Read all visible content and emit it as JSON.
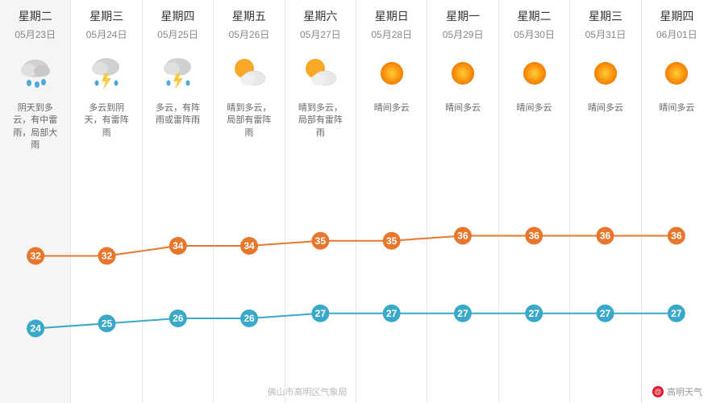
{
  "meta": {
    "source_text": "佛山市高明区气象局",
    "handle_prefix": "@",
    "handle": "高明天气"
  },
  "chart": {
    "type": "line",
    "high_color": "#e8772e",
    "low_color": "#3aa9c9",
    "marker_radius": 11,
    "line_width": 2,
    "grid_color": "#e8e8e8",
    "background_color": "#ffffff",
    "selected_bg": "#f5f5f5",
    "y_range_high": [
      30,
      38
    ],
    "y_range_low": [
      22,
      30
    ],
    "col_width": 88.3
  },
  "days": [
    {
      "weekday": "星期二",
      "date": "05月23日",
      "icon": "cloud-rain",
      "desc": "阴天到多云，有中雷雨，局部大雨",
      "high": 32,
      "low": 24,
      "selected": true
    },
    {
      "weekday": "星期三",
      "date": "05月24日",
      "icon": "thunder-rain",
      "desc": "多云到阴天，有雷阵雨",
      "high": 32,
      "low": 25,
      "selected": false
    },
    {
      "weekday": "星期四",
      "date": "05月25日",
      "icon": "thunder-rain",
      "desc": "多云，有阵雨或雷阵雨",
      "high": 34,
      "low": 26,
      "selected": false
    },
    {
      "weekday": "星期五",
      "date": "05月26日",
      "icon": "sun-cloud",
      "desc": "晴到多云，局部有雷阵雨",
      "high": 34,
      "low": 26,
      "selected": false
    },
    {
      "weekday": "星期六",
      "date": "05月27日",
      "icon": "sun-cloud",
      "desc": "晴到多云，局部有雷阵雨",
      "high": 35,
      "low": 27,
      "selected": false
    },
    {
      "weekday": "星期日",
      "date": "05月28日",
      "icon": "sun",
      "desc": "晴间多云",
      "high": 35,
      "low": 27,
      "selected": false
    },
    {
      "weekday": "星期一",
      "date": "05月29日",
      "icon": "sun",
      "desc": "晴间多云",
      "high": 36,
      "low": 27,
      "selected": false
    },
    {
      "weekday": "星期二",
      "date": "05月30日",
      "icon": "sun",
      "desc": "晴间多云",
      "high": 36,
      "low": 27,
      "selected": false
    },
    {
      "weekday": "星期三",
      "date": "05月31日",
      "icon": "sun",
      "desc": "晴间多云",
      "high": 36,
      "low": 27,
      "selected": false
    },
    {
      "weekday": "星期四",
      "date": "06月01日",
      "icon": "sun",
      "desc": "晴间多云",
      "high": 36,
      "low": 27,
      "selected": false
    }
  ]
}
